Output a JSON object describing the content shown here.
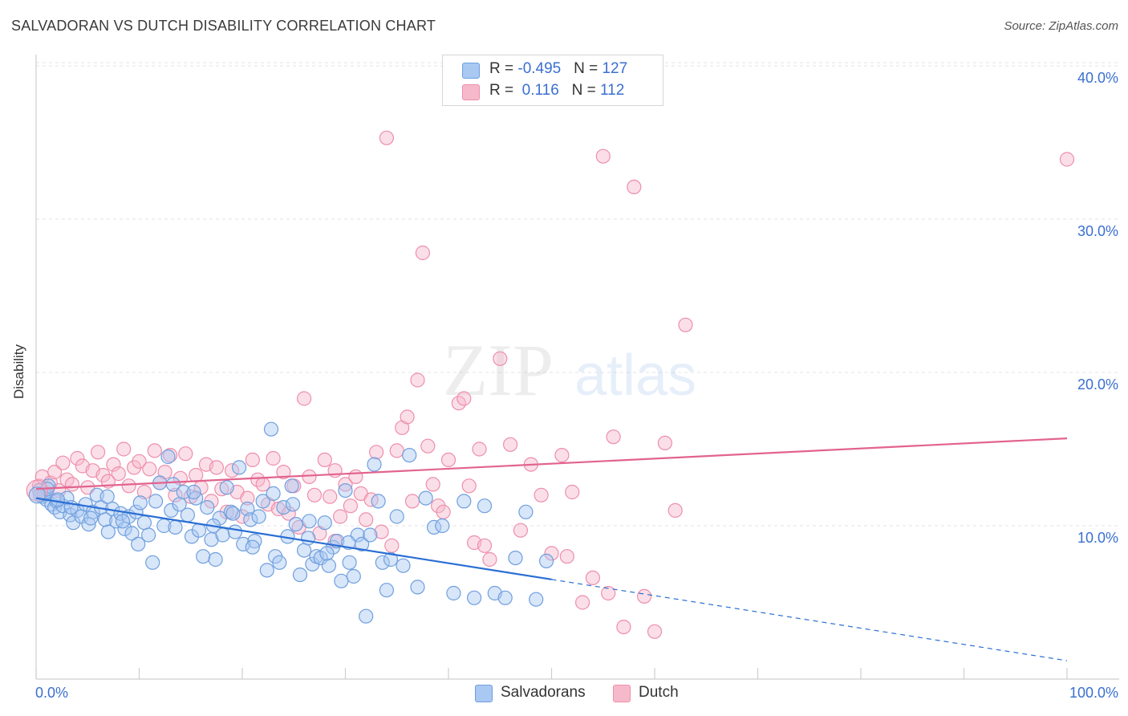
{
  "title": "SALVADORAN VS DUTCH DISABILITY CORRELATION CHART",
  "source": "Source: ZipAtlas.com",
  "watermark": {
    "zip": "ZIP",
    "atlas": "atlas"
  },
  "legend_top": [
    {
      "r_label": "R = ",
      "r_value": "-0.495",
      "n_label": "N = ",
      "n_value": "127",
      "color": "#a9c8f2"
    },
    {
      "r_label": "R = ",
      "r_value": " 0.116",
      "n_label": "N = ",
      "n_value": "112",
      "color": "#f6b9cb"
    }
  ],
  "legend_bottom": [
    "Salvadorans",
    "Dutch"
  ],
  "colors": {
    "salvadorans_fill": "#a9c8f2",
    "salvadorans_stroke": "#6f9fde",
    "salvadorans_line": "#2a6ed4",
    "dutch_fill": "#f6b9cb",
    "dutch_stroke": "#ee8eab",
    "dutch_line": "#e2638f",
    "grid": "#e3e3e3",
    "tick_text": "#3a6fd0"
  },
  "chart_data": {
    "type": "scatter",
    "title": "SALVADORAN VS DUTCH DISABILITY CORRELATION CHART",
    "xlabel": "",
    "ylabel": "Disability",
    "xlim": [
      0,
      100
    ],
    "ylim": [
      0,
      42
    ],
    "x_tick_labels": [
      "0.0%",
      "100.0%"
    ],
    "y_ticks": [
      10,
      20,
      30,
      40
    ],
    "y_tick_labels": [
      "10.0%",
      "20.0%",
      "30.0%",
      "40.0%"
    ],
    "grid": true,
    "legend_position": "top-center",
    "series": [
      {
        "name": "Salvadorans",
        "R": -0.495,
        "N": 127,
        "trend": {
          "x0": 0,
          "y0": 11.8,
          "x1": 50,
          "y1": 6.5,
          "dashed_to_x": 100,
          "dashed_to_y": 1.2
        },
        "points": [
          [
            0.3,
            12.3
          ],
          [
            0.6,
            11.9
          ],
          [
            0.8,
            12.1
          ],
          [
            1.0,
            11.7
          ],
          [
            1.2,
            12.6
          ],
          [
            1.5,
            11.4
          ],
          [
            1.8,
            11.2
          ],
          [
            2.0,
            11.6
          ],
          [
            2.3,
            10.9
          ],
          [
            2.6,
            11.3
          ],
          [
            3.0,
            11.8
          ],
          [
            3.3,
            10.7
          ],
          [
            3.6,
            10.2
          ],
          [
            4.0,
            11.0
          ],
          [
            4.4,
            10.6
          ],
          [
            4.8,
            11.4
          ],
          [
            5.1,
            10.1
          ],
          [
            5.5,
            10.9
          ],
          [
            5.9,
            12.0
          ],
          [
            6.3,
            11.2
          ],
          [
            6.7,
            10.4
          ],
          [
            7.0,
            9.6
          ],
          [
            7.4,
            11.1
          ],
          [
            7.8,
            10.3
          ],
          [
            8.2,
            10.8
          ],
          [
            8.6,
            9.8
          ],
          [
            9.0,
            10.6
          ],
          [
            9.3,
            9.5
          ],
          [
            9.7,
            10.9
          ],
          [
            10.1,
            11.5
          ],
          [
            10.5,
            10.2
          ],
          [
            10.9,
            9.4
          ],
          [
            11.3,
            7.6
          ],
          [
            11.6,
            11.6
          ],
          [
            12.0,
            12.8
          ],
          [
            12.4,
            10.0
          ],
          [
            12.8,
            14.5
          ],
          [
            13.1,
            11.0
          ],
          [
            13.5,
            9.9
          ],
          [
            13.9,
            11.4
          ],
          [
            14.3,
            12.2
          ],
          [
            14.7,
            10.7
          ],
          [
            15.1,
            9.3
          ],
          [
            15.5,
            11.8
          ],
          [
            15.8,
            9.7
          ],
          [
            16.2,
            8.0
          ],
          [
            16.6,
            11.2
          ],
          [
            17.0,
            9.1
          ],
          [
            17.4,
            7.8
          ],
          [
            17.8,
            10.5
          ],
          [
            18.1,
            9.4
          ],
          [
            18.5,
            12.5
          ],
          [
            18.9,
            10.9
          ],
          [
            19.3,
            9.6
          ],
          [
            19.7,
            13.8
          ],
          [
            20.1,
            8.8
          ],
          [
            20.5,
            11.1
          ],
          [
            20.8,
            10.4
          ],
          [
            21.2,
            9.0
          ],
          [
            21.6,
            10.6
          ],
          [
            22.0,
            11.6
          ],
          [
            22.4,
            7.1
          ],
          [
            22.8,
            16.3
          ],
          [
            23.2,
            8.0
          ],
          [
            23.6,
            7.6
          ],
          [
            24.0,
            11.2
          ],
          [
            24.4,
            9.3
          ],
          [
            24.8,
            12.6
          ],
          [
            25.2,
            10.1
          ],
          [
            25.6,
            6.8
          ],
          [
            26.0,
            8.4
          ],
          [
            26.4,
            9.2
          ],
          [
            26.8,
            7.5
          ],
          [
            27.2,
            8.0
          ],
          [
            27.6,
            7.9
          ],
          [
            28.0,
            10.2
          ],
          [
            28.4,
            7.4
          ],
          [
            28.8,
            8.6
          ],
          [
            29.2,
            9.0
          ],
          [
            29.6,
            6.4
          ],
          [
            30.0,
            12.3
          ],
          [
            30.4,
            7.6
          ],
          [
            30.8,
            6.7
          ],
          [
            31.2,
            9.4
          ],
          [
            31.6,
            8.8
          ],
          [
            32.0,
            4.1
          ],
          [
            32.4,
            9.4
          ],
          [
            32.8,
            14.0
          ],
          [
            33.2,
            11.6
          ],
          [
            33.6,
            7.6
          ],
          [
            34.0,
            5.8
          ],
          [
            34.4,
            7.8
          ],
          [
            35.0,
            10.6
          ],
          [
            35.6,
            7.4
          ],
          [
            36.2,
            14.6
          ],
          [
            37.0,
            6.0
          ],
          [
            37.8,
            11.8
          ],
          [
            38.6,
            9.9
          ],
          [
            39.4,
            10.0
          ],
          [
            40.5,
            5.6
          ],
          [
            41.5,
            11.6
          ],
          [
            42.5,
            5.3
          ],
          [
            43.5,
            11.3
          ],
          [
            44.5,
            5.6
          ],
          [
            45.5,
            5.3
          ],
          [
            46.5,
            7.9
          ],
          [
            47.5,
            10.9
          ],
          [
            48.5,
            5.2
          ],
          [
            49.5,
            7.7
          ],
          [
            0.4,
            12.0
          ],
          [
            1.1,
            12.4
          ],
          [
            2.1,
            11.7
          ],
          [
            3.4,
            11.2
          ],
          [
            5.3,
            10.5
          ],
          [
            6.9,
            11.9
          ],
          [
            8.4,
            10.3
          ],
          [
            9.9,
            8.8
          ],
          [
            13.3,
            12.7
          ],
          [
            15.3,
            12.2
          ],
          [
            17.2,
            10.0
          ],
          [
            19.1,
            10.8
          ],
          [
            21.0,
            8.6
          ],
          [
            23.0,
            12.1
          ],
          [
            24.9,
            11.4
          ],
          [
            26.5,
            10.3
          ],
          [
            28.2,
            8.2
          ],
          [
            30.3,
            8.9
          ]
        ]
      },
      {
        "name": "Dutch",
        "R": 0.116,
        "N": 112,
        "trend": {
          "x0": 0,
          "y0": 12.4,
          "x1": 100,
          "y1": 15.7
        },
        "points": [
          [
            0.3,
            12.6
          ],
          [
            0.6,
            13.2
          ],
          [
            1.0,
            12.1
          ],
          [
            1.4,
            12.8
          ],
          [
            1.8,
            13.5
          ],
          [
            2.2,
            12.3
          ],
          [
            2.6,
            14.1
          ],
          [
            3.0,
            13.0
          ],
          [
            3.5,
            12.7
          ],
          [
            4.0,
            14.4
          ],
          [
            4.5,
            13.9
          ],
          [
            5.0,
            12.5
          ],
          [
            5.5,
            13.6
          ],
          [
            6.0,
            14.8
          ],
          [
            6.5,
            13.3
          ],
          [
            7.0,
            12.9
          ],
          [
            7.5,
            14.0
          ],
          [
            8.0,
            13.4
          ],
          [
            8.5,
            15.0
          ],
          [
            9.0,
            12.6
          ],
          [
            9.5,
            13.8
          ],
          [
            10.0,
            14.2
          ],
          [
            10.5,
            12.2
          ],
          [
            11.0,
            13.7
          ],
          [
            11.5,
            14.9
          ],
          [
            12.0,
            12.8
          ],
          [
            12.5,
            13.5
          ],
          [
            13.0,
            14.6
          ],
          [
            13.5,
            12.0
          ],
          [
            14.0,
            13.1
          ],
          [
            14.5,
            14.7
          ],
          [
            15.0,
            11.9
          ],
          [
            15.5,
            13.3
          ],
          [
            16.0,
            12.5
          ],
          [
            16.5,
            14.0
          ],
          [
            17.0,
            11.6
          ],
          [
            17.5,
            13.8
          ],
          [
            18.0,
            12.4
          ],
          [
            18.5,
            10.9
          ],
          [
            19.0,
            13.6
          ],
          [
            19.5,
            12.2
          ],
          [
            20.0,
            10.6
          ],
          [
            20.5,
            11.8
          ],
          [
            21.0,
            14.3
          ],
          [
            21.5,
            13.0
          ],
          [
            22.0,
            12.7
          ],
          [
            22.5,
            11.4
          ],
          [
            23.0,
            14.4
          ],
          [
            23.5,
            11.1
          ],
          [
            24.0,
            13.5
          ],
          [
            24.5,
            10.8
          ],
          [
            25.0,
            12.6
          ],
          [
            25.5,
            9.9
          ],
          [
            26.0,
            18.3
          ],
          [
            26.5,
            13.2
          ],
          [
            27.0,
            12.0
          ],
          [
            27.5,
            9.5
          ],
          [
            28.0,
            14.3
          ],
          [
            28.5,
            11.9
          ],
          [
            29.0,
            13.6
          ],
          [
            29.5,
            10.6
          ],
          [
            30.0,
            12.7
          ],
          [
            30.5,
            11.3
          ],
          [
            31.0,
            13.2
          ],
          [
            31.5,
            12.1
          ],
          [
            32.0,
            10.4
          ],
          [
            32.5,
            11.7
          ],
          [
            33.0,
            14.8
          ],
          [
            33.5,
            9.6
          ],
          [
            34.0,
            35.3
          ],
          [
            34.5,
            8.7
          ],
          [
            35.0,
            14.9
          ],
          [
            35.5,
            16.4
          ],
          [
            36.0,
            17.1
          ],
          [
            36.5,
            11.6
          ],
          [
            37.0,
            19.5
          ],
          [
            37.5,
            27.8
          ],
          [
            38.0,
            15.2
          ],
          [
            38.5,
            12.7
          ],
          [
            39.0,
            11.3
          ],
          [
            40.0,
            14.3
          ],
          [
            41.0,
            18.0
          ],
          [
            41.5,
            18.3
          ],
          [
            42.0,
            12.6
          ],
          [
            42.5,
            8.9
          ],
          [
            43.0,
            15.0
          ],
          [
            44.0,
            7.8
          ],
          [
            45.0,
            20.9
          ],
          [
            46.0,
            15.3
          ],
          [
            47.0,
            9.7
          ],
          [
            48.0,
            14.0
          ],
          [
            49.0,
            12.0
          ],
          [
            50.0,
            8.2
          ],
          [
            51.0,
            14.6
          ],
          [
            52.0,
            12.2
          ],
          [
            53.0,
            5.0
          ],
          [
            54.0,
            6.6
          ],
          [
            55.0,
            34.1
          ],
          [
            56.0,
            15.8
          ],
          [
            57.0,
            3.4
          ],
          [
            58.0,
            32.1
          ],
          [
            59.0,
            5.4
          ],
          [
            60.0,
            3.1
          ],
          [
            61.0,
            15.4
          ],
          [
            62.0,
            11.0
          ],
          [
            63.0,
            23.1
          ],
          [
            100.0,
            33.9
          ],
          [
            29.0,
            9.0
          ],
          [
            39.5,
            10.9
          ],
          [
            43.5,
            8.7
          ],
          [
            51.5,
            8.0
          ],
          [
            55.5,
            5.6
          ]
        ]
      }
    ]
  }
}
